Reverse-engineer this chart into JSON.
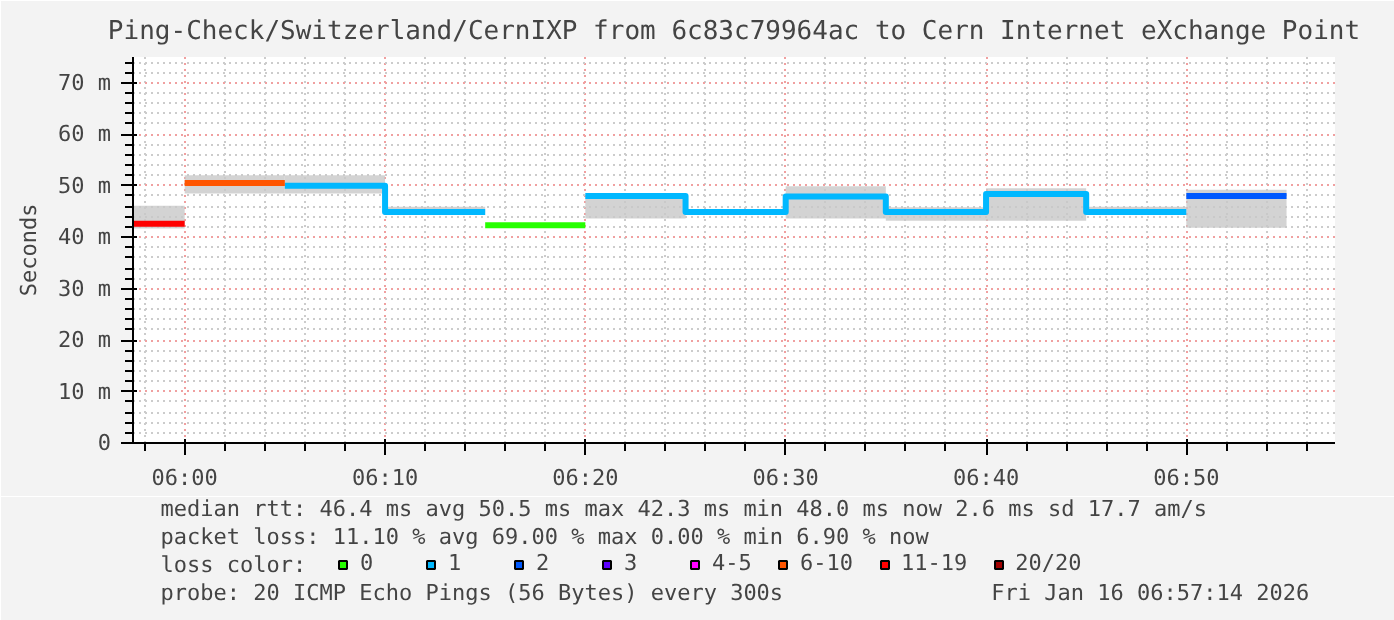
{
  "chart_data": {
    "type": "line",
    "title": "Ping-Check/Switzerland/CernIXP from 6c83c79964ac to Cern Internet eXchange Point",
    "ylabel": "Seconds",
    "legend_title": "loss color:",
    "series": [
      {
        "name": "0",
        "color": "#26ff00",
        "x": [
          6.25,
          6.3333
        ],
        "values": [
          42.3,
          42.3
        ]
      },
      {
        "name": "1",
        "color": "#00b8ff",
        "x": [
          6.0833,
          6.1667,
          6.1667,
          6.25,
          6.2917,
          6.3333,
          6.4167,
          6.4167,
          6.5,
          6.5,
          6.5833,
          6.5833,
          6.6667,
          6.6667,
          6.75,
          6.75,
          6.8333
        ],
        "values": [
          50.0,
          50.0,
          44.9,
          44.9,
          null,
          48.0,
          48.0,
          44.9,
          44.9,
          47.9,
          47.9,
          44.9,
          44.9,
          48.4,
          48.4,
          44.9,
          44.9
        ],
        "lower": [
          48.5,
          48.5,
          44.3,
          44.3,
          null,
          43.6,
          43.6,
          44.5,
          44.5,
          43.6,
          43.6,
          43.2,
          43.2,
          43.2,
          43.2,
          44.5,
          44.5
        ],
        "upper": [
          52.0,
          52.0,
          45.9,
          45.9,
          null,
          48.2,
          48.2,
          45.0,
          45.0,
          49.9,
          49.9,
          45.8,
          45.8,
          49.5,
          49.5,
          45.9,
          45.9
        ]
      },
      {
        "name": "2",
        "color": "#0059ff",
        "x": [
          6.8333,
          6.9167
        ],
        "values": [
          48.0,
          48.0
        ],
        "lower": [
          41.8,
          41.8
        ],
        "upper": [
          49.2,
          49.2
        ]
      },
      {
        "name": "3",
        "color": "#5e00ff"
      },
      {
        "name": "4-5",
        "color": "#ff00ff"
      },
      {
        "name": "6-10",
        "color": "#ff5500",
        "x": [
          6.0,
          6.0833
        ],
        "values": [
          50.5,
          50.5
        ],
        "lower": [
          48.5,
          48.5
        ],
        "upper": [
          52.0,
          52.0
        ]
      },
      {
        "name": "11-19",
        "color": "#ff0000",
        "x": [
          5.957,
          6.0
        ],
        "values": [
          42.6,
          42.6
        ],
        "lower": [
          41.7,
          41.7
        ],
        "upper": [
          46.1,
          46.1
        ]
      },
      {
        "name": "20/20",
        "color": "#a10000"
      }
    ],
    "xlim": [
      5.957,
      6.957
    ],
    "xticks": [
      {
        "value": 6.0,
        "label": "06:00"
      },
      {
        "value": 6.1667,
        "label": "06:10"
      },
      {
        "value": 6.3333,
        "label": "06:20"
      },
      {
        "value": 6.5,
        "label": "06:30"
      },
      {
        "value": 6.6667,
        "label": "06:40"
      },
      {
        "value": 6.8333,
        "label": "06:50"
      }
    ],
    "ylim": [
      0,
      75
    ],
    "yticks": [
      0,
      {
        "value": 10,
        "label": "10 m"
      },
      {
        "value": 20,
        "label": "20 m"
      },
      {
        "value": 30,
        "label": "30 m"
      },
      {
        "value": 40,
        "label": "40 m"
      },
      {
        "value": 50,
        "label": "50 m"
      },
      {
        "value": 60,
        "label": "60 m"
      },
      {
        "value": 70,
        "label": "70 m"
      }
    ],
    "grid": true,
    "legend": "bottom",
    "annotations": [
      "median rtt:  46.4 ms avg  50.5 ms max  42.3 ms min  48.0 ms now  2.6 ms sd  17.7   am/s",
      "packet loss: 11.10 % avg  69.00 % max   0.00 % min  6.90 % now",
      "probe:       20 ICMP Echo Pings (56 Bytes) every 300s",
      "Fri Jan 16 06:57:14 2026"
    ]
  }
}
